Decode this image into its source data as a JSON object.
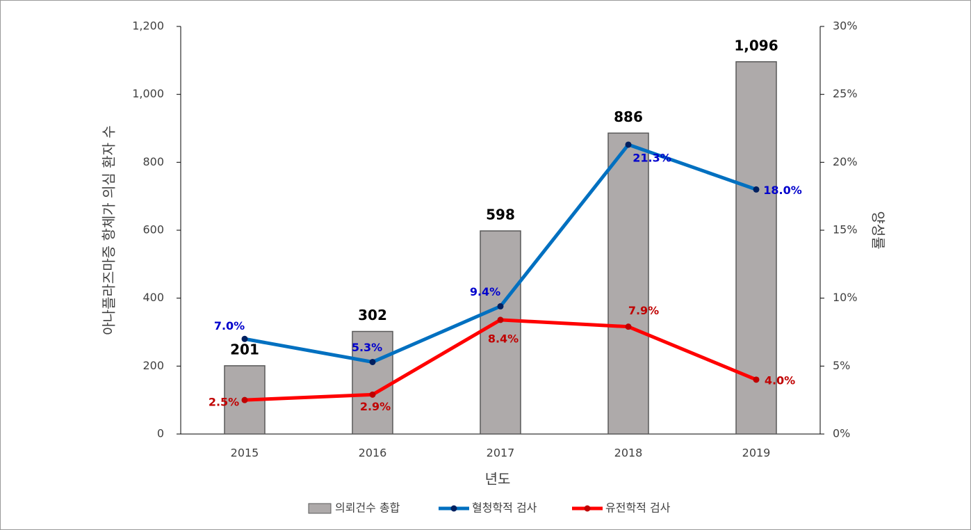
{
  "chart_data": {
    "type": "bar",
    "xlabel": "년도",
    "ylabel": "아나플라즈마증 항체가 의심 환자 수",
    "y2label": "양성률",
    "categories": [
      "2015",
      "2016",
      "2017",
      "2018",
      "2019"
    ],
    "series": [
      {
        "name": "의뢰건수 총합",
        "type": "bar",
        "color": "#aeaaaa",
        "values": [
          201,
          302,
          598,
          886,
          1096
        ],
        "value_labels": [
          "201",
          "302",
          "598",
          "886",
          "1,096"
        ]
      },
      {
        "name": "혈청학적 검사",
        "type": "line",
        "axis": "y2",
        "color": "#0070c0",
        "marker_color": "#002060",
        "label_color": "#0000cc",
        "values": [
          7.0,
          5.3,
          9.4,
          21.3,
          18.0
        ],
        "value_labels": [
          "7.0%",
          "5.3%",
          "9.4%",
          "21.3%",
          "18.0%"
        ]
      },
      {
        "name": "유전학적 검사",
        "type": "line",
        "axis": "y2",
        "color": "#ff0000",
        "marker_color": "#c00000",
        "label_color": "#c00000",
        "values": [
          2.5,
          2.9,
          8.4,
          7.9,
          4.0
        ],
        "value_labels": [
          "2.5%",
          "2.9%",
          "8.4%",
          "7.9%",
          "4.0%"
        ]
      }
    ],
    "ylim": [
      0,
      1200
    ],
    "yticks": [
      0,
      200,
      400,
      600,
      800,
      {
        "value": 1000,
        "label": "1,000"
      },
      {
        "value": 1200,
        "label": "1,200"
      }
    ],
    "y2lim": [
      0,
      30
    ],
    "y2ticks": [
      {
        "value": 0,
        "label": "0%"
      },
      {
        "value": 5,
        "label": "5%"
      },
      {
        "value": 10,
        "label": "10%"
      },
      {
        "value": 15,
        "label": "15%"
      },
      {
        "value": 20,
        "label": "20%"
      },
      {
        "value": 25,
        "label": "25%"
      },
      {
        "value": 30,
        "label": "30%"
      }
    ],
    "legend": "bottom"
  }
}
